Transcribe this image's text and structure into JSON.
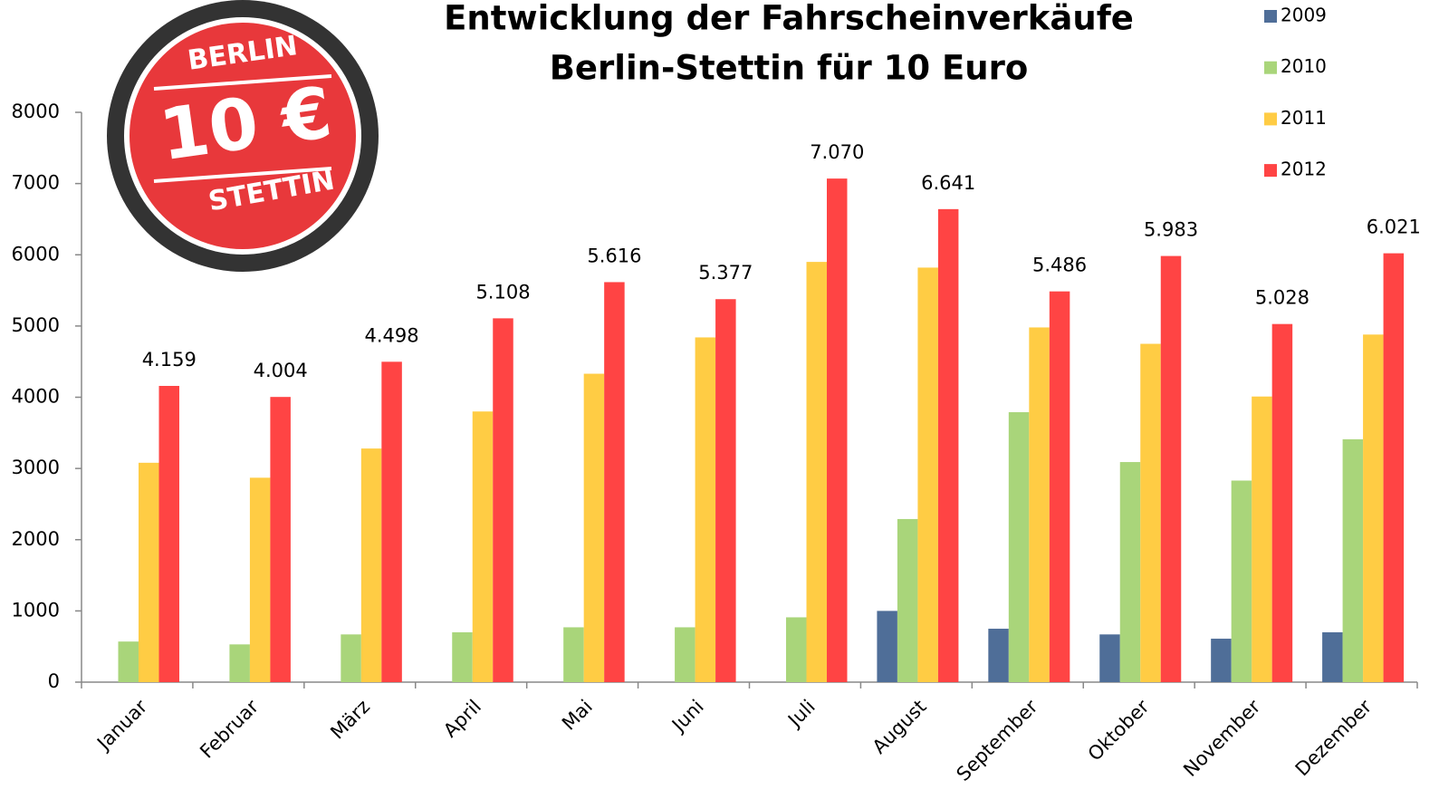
{
  "logo_text": [
    "BERLIN",
    "10 €",
    "STETTIN"
  ],
  "chart_data": {
    "type": "bar",
    "title": [
      "Entwicklung der Fahrscheinverkäufe",
      "Berlin-Stettin für 10 Euro"
    ],
    "categories": [
      "Januar",
      "Februar",
      "März",
      "April",
      "Mai",
      "Juni",
      "Juli",
      "August",
      "September",
      "Oktober",
      "November",
      "Dezember"
    ],
    "series": [
      {
        "name": "2009",
        "color": "#4f6e98",
        "values": [
          null,
          null,
          null,
          null,
          null,
          null,
          null,
          1000,
          750,
          670,
          610,
          700
        ]
      },
      {
        "name": "2010",
        "color": "#a9d57a",
        "values": [
          570,
          530,
          670,
          700,
          770,
          770,
          910,
          2290,
          3790,
          3090,
          2830,
          3410
        ]
      },
      {
        "name": "2011",
        "color": "#ffcc44",
        "values": [
          3080,
          2870,
          3280,
          3800,
          4330,
          4840,
          5900,
          5820,
          4980,
          4750,
          4010,
          4880
        ]
      },
      {
        "name": "2012",
        "color": "#ff4444",
        "values": [
          4159,
          4004,
          4498,
          5108,
          5616,
          5377,
          7070,
          6641,
          5486,
          5983,
          5028,
          6021
        ],
        "value_labels": [
          "4.159",
          "4.004",
          "4.498",
          "5.108",
          "5.616",
          "5.377",
          "7.070",
          "6.641",
          "5.486",
          "5.983",
          "5.028",
          "6.021"
        ]
      }
    ],
    "ylim": [
      0,
      8000
    ],
    "yticks": [
      0,
      1000,
      2000,
      3000,
      4000,
      5000,
      6000,
      7000,
      8000
    ],
    "legend": "top-right"
  }
}
